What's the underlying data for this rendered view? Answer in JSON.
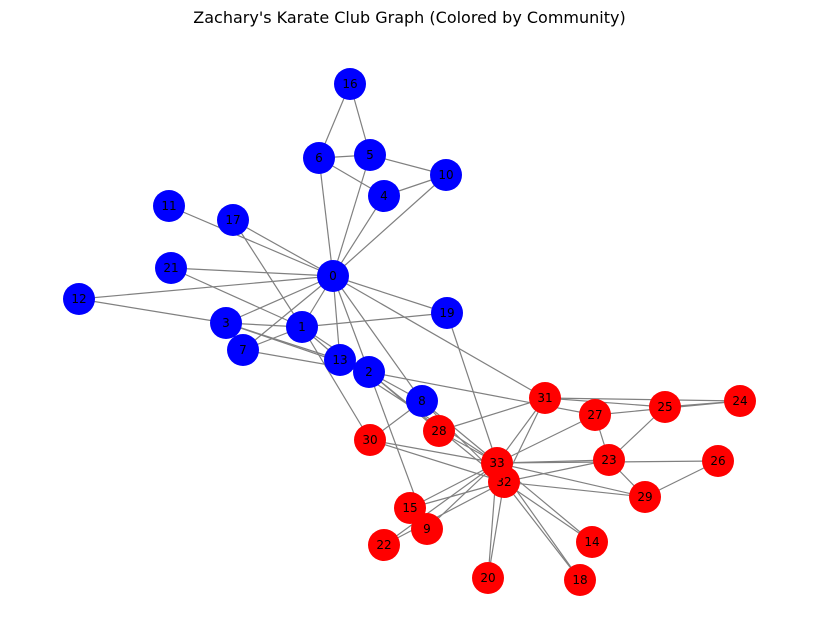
{
  "title": "Zachary's Karate Club Graph (Colored by Community)",
  "colors": {
    "community_a": "#0000ff",
    "community_b": "#ff0000",
    "edge": "#808080",
    "label": "#000000"
  },
  "nodes": [
    {
      "id": 0,
      "label": "0",
      "community": "a"
    },
    {
      "id": 1,
      "label": "1",
      "community": "a"
    },
    {
      "id": 2,
      "label": "2",
      "community": "a"
    },
    {
      "id": 3,
      "label": "3",
      "community": "a"
    },
    {
      "id": 4,
      "label": "4",
      "community": "a"
    },
    {
      "id": 5,
      "label": "5",
      "community": "a"
    },
    {
      "id": 6,
      "label": "6",
      "community": "a"
    },
    {
      "id": 7,
      "label": "7",
      "community": "a"
    },
    {
      "id": 8,
      "label": "8",
      "community": "a"
    },
    {
      "id": 9,
      "label": "9",
      "community": "b"
    },
    {
      "id": 10,
      "label": "10",
      "community": "a"
    },
    {
      "id": 11,
      "label": "11",
      "community": "a"
    },
    {
      "id": 12,
      "label": "12",
      "community": "a"
    },
    {
      "id": 13,
      "label": "13",
      "community": "a"
    },
    {
      "id": 14,
      "label": "14",
      "community": "b"
    },
    {
      "id": 15,
      "label": "15",
      "community": "b"
    },
    {
      "id": 16,
      "label": "16",
      "community": "a"
    },
    {
      "id": 17,
      "label": "17",
      "community": "a"
    },
    {
      "id": 18,
      "label": "18",
      "community": "b"
    },
    {
      "id": 19,
      "label": "19",
      "community": "a"
    },
    {
      "id": 20,
      "label": "20",
      "community": "b"
    },
    {
      "id": 21,
      "label": "21",
      "community": "a"
    },
    {
      "id": 22,
      "label": "22",
      "community": "b"
    },
    {
      "id": 23,
      "label": "23",
      "community": "b"
    },
    {
      "id": 24,
      "label": "24",
      "community": "b"
    },
    {
      "id": 25,
      "label": "25",
      "community": "b"
    },
    {
      "id": 26,
      "label": "26",
      "community": "b"
    },
    {
      "id": 27,
      "label": "27",
      "community": "b"
    },
    {
      "id": 28,
      "label": "28",
      "community": "b"
    },
    {
      "id": 29,
      "label": "29",
      "community": "b"
    },
    {
      "id": 30,
      "label": "30",
      "community": "b"
    },
    {
      "id": 31,
      "label": "31",
      "community": "b"
    },
    {
      "id": 32,
      "label": "32",
      "community": "b"
    },
    {
      "id": 33,
      "label": "33",
      "community": "b"
    }
  ],
  "edges": [
    [
      0,
      1
    ],
    [
      0,
      2
    ],
    [
      0,
      3
    ],
    [
      0,
      4
    ],
    [
      0,
      5
    ],
    [
      0,
      6
    ],
    [
      0,
      7
    ],
    [
      0,
      8
    ],
    [
      0,
      10
    ],
    [
      0,
      11
    ],
    [
      0,
      12
    ],
    [
      0,
      13
    ],
    [
      0,
      17
    ],
    [
      0,
      19
    ],
    [
      0,
      21
    ],
    [
      0,
      31
    ],
    [
      1,
      2
    ],
    [
      1,
      3
    ],
    [
      1,
      7
    ],
    [
      1,
      13
    ],
    [
      1,
      17
    ],
    [
      1,
      19
    ],
    [
      1,
      21
    ],
    [
      1,
      30
    ],
    [
      2,
      3
    ],
    [
      2,
      7
    ],
    [
      2,
      8
    ],
    [
      2,
      9
    ],
    [
      2,
      13
    ],
    [
      2,
      27
    ],
    [
      2,
      28
    ],
    [
      2,
      32
    ],
    [
      3,
      7
    ],
    [
      3,
      12
    ],
    [
      3,
      13
    ],
    [
      4,
      6
    ],
    [
      4,
      10
    ],
    [
      5,
      6
    ],
    [
      5,
      10
    ],
    [
      5,
      16
    ],
    [
      6,
      16
    ],
    [
      8,
      30
    ],
    [
      8,
      32
    ],
    [
      8,
      33
    ],
    [
      9,
      33
    ],
    [
      13,
      33
    ],
    [
      14,
      32
    ],
    [
      14,
      33
    ],
    [
      15,
      32
    ],
    [
      15,
      33
    ],
    [
      18,
      32
    ],
    [
      18,
      33
    ],
    [
      19,
      33
    ],
    [
      20,
      32
    ],
    [
      20,
      33
    ],
    [
      22,
      32
    ],
    [
      22,
      33
    ],
    [
      23,
      25
    ],
    [
      23,
      27
    ],
    [
      23,
      29
    ],
    [
      23,
      32
    ],
    [
      23,
      33
    ],
    [
      24,
      25
    ],
    [
      24,
      27
    ],
    [
      24,
      31
    ],
    [
      25,
      31
    ],
    [
      26,
      29
    ],
    [
      26,
      33
    ],
    [
      27,
      33
    ],
    [
      28,
      31
    ],
    [
      28,
      33
    ],
    [
      29,
      32
    ],
    [
      29,
      33
    ],
    [
      30,
      32
    ],
    [
      30,
      33
    ],
    [
      31,
      32
    ],
    [
      31,
      33
    ],
    [
      32,
      33
    ]
  ]
}
